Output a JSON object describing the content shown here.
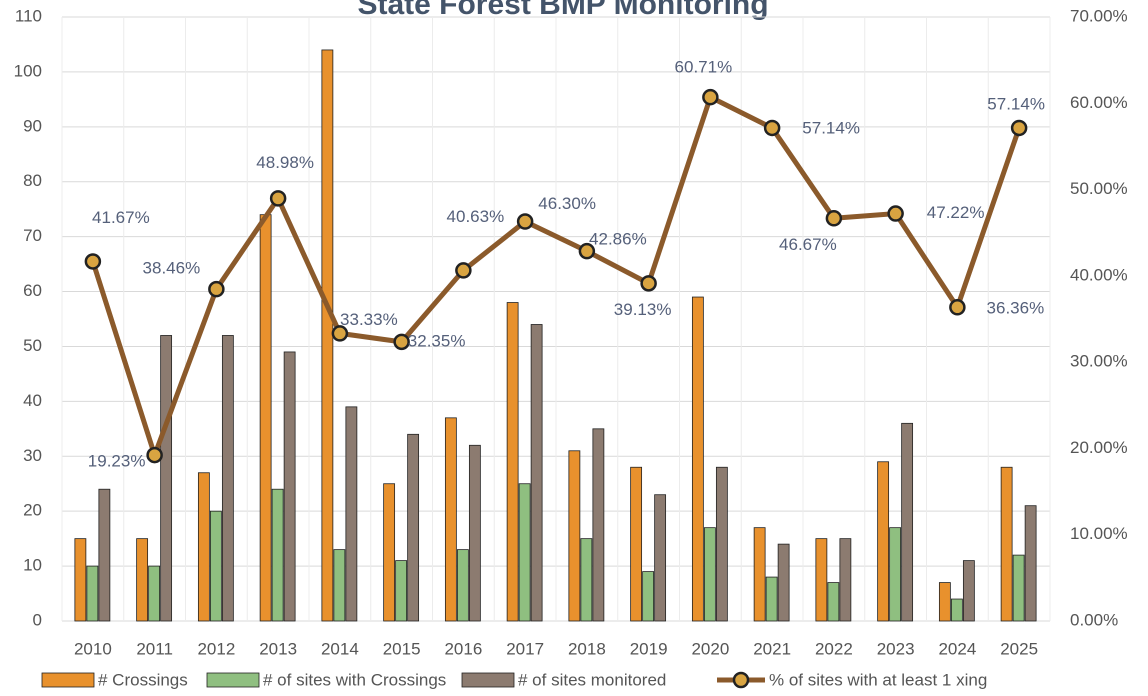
{
  "chart_data": {
    "type": "bar",
    "title": "State Forest BMP Monitoring",
    "categories": [
      "2010",
      "2011",
      "2012",
      "2013",
      "2014",
      "2015",
      "2016",
      "2017",
      "2018",
      "2019",
      "2020",
      "2021",
      "2022",
      "2023",
      "2024",
      "2025"
    ],
    "series": [
      {
        "name": "# Crossings",
        "color": "#e8912d",
        "values": [
          15,
          15,
          27,
          74,
          104,
          25,
          37,
          58,
          31,
          28,
          59,
          17,
          15,
          29,
          7,
          28
        ]
      },
      {
        "name": "# of sites with Crossings",
        "color": "#8fbf80",
        "values": [
          10,
          10,
          20,
          24,
          13,
          11,
          13,
          25,
          15,
          9,
          17,
          8,
          7,
          17,
          4,
          12
        ]
      },
      {
        "name": "# of sites monitored",
        "color": "#8c7b70",
        "values": [
          24,
          52,
          52,
          49,
          39,
          34,
          32,
          54,
          35,
          23,
          28,
          14,
          15,
          36,
          11,
          21
        ]
      },
      {
        "name": "% of sites with at least 1 xing",
        "color": "#8b5a2b",
        "type": "line",
        "axis": "y2",
        "values": [
          41.67,
          19.23,
          38.46,
          48.98,
          33.33,
          32.35,
          40.63,
          46.3,
          42.86,
          39.13,
          60.71,
          57.14,
          46.67,
          47.22,
          36.36,
          57.14
        ],
        "value_labels": [
          "41.67%",
          "19.23%",
          "38.46%",
          "48.98%",
          "33.33%",
          "32.35%",
          "40.63%",
          "46.30%",
          "42.86%",
          "39.13%",
          "60.71%",
          "57.14%",
          "46.67%",
          "47.22%",
          "36.36%",
          "57.14%"
        ]
      }
    ],
    "ylim": [
      0,
      110
    ],
    "yticks": [
      0,
      10,
      20,
      30,
      40,
      50,
      60,
      70,
      80,
      90,
      100,
      110
    ],
    "y2lim": [
      0,
      70
    ],
    "y2ticks": [
      {
        "value": 0,
        "label": "0.00%"
      },
      {
        "value": 10,
        "label": "10.00%"
      },
      {
        "value": 20,
        "label": "20.00%"
      },
      {
        "value": 30,
        "label": "30.00%"
      },
      {
        "value": 40,
        "label": "40.00%"
      },
      {
        "value": 50,
        "label": "50.00%"
      },
      {
        "value": 60,
        "label": "60.00%"
      },
      {
        "value": 70,
        "label": "70.00%"
      }
    ],
    "grid": true,
    "legend": "bottom"
  }
}
